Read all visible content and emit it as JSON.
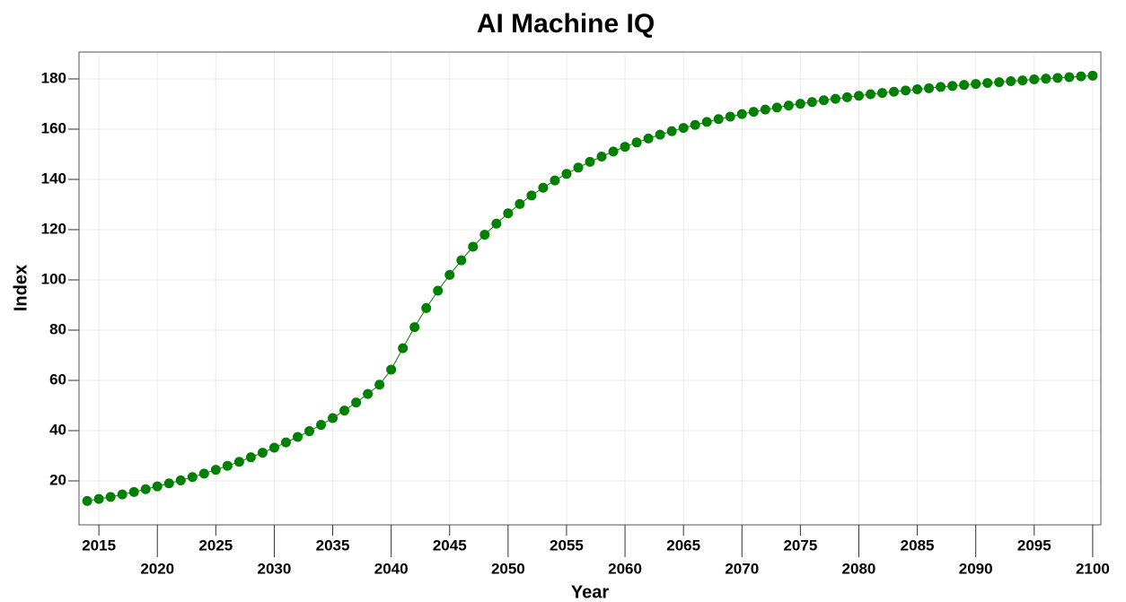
{
  "chart_data": {
    "type": "line",
    "title": "AI Machine IQ",
    "x_label": "Year",
    "y_label": "Index",
    "x": [
      2014,
      2015,
      2016,
      2017,
      2018,
      2019,
      2020,
      2021,
      2022,
      2023,
      2024,
      2025,
      2026,
      2027,
      2028,
      2029,
      2030,
      2031,
      2032,
      2033,
      2034,
      2035,
      2036,
      2037,
      2038,
      2039,
      2040,
      2041,
      2042,
      2043,
      2044,
      2045,
      2046,
      2047,
      2048,
      2049,
      2050,
      2051,
      2052,
      2053,
      2054,
      2055,
      2056,
      2057,
      2058,
      2059,
      2060,
      2061,
      2062,
      2063,
      2064,
      2065,
      2066,
      2067,
      2068,
      2069,
      2070,
      2071,
      2072,
      2073,
      2074,
      2075,
      2076,
      2077,
      2078,
      2079,
      2080,
      2081,
      2082,
      2083,
      2084,
      2085,
      2086,
      2087,
      2088,
      2089,
      2090,
      2091,
      2092,
      2093,
      2094,
      2095,
      2096,
      2097,
      2098,
      2099,
      2100
    ],
    "series": [
      {
        "name": "Index",
        "color": "#008000",
        "values": [
          12,
          12.8,
          13.6,
          14.6,
          15.6,
          16.7,
          17.8,
          19,
          20.2,
          21.5,
          22.9,
          24.4,
          26,
          27.6,
          29.4,
          31.2,
          33.2,
          35.3,
          37.5,
          39.8,
          42.3,
          45,
          48,
          51.2,
          54.6,
          58.3,
          64.3,
          72.8,
          81.2,
          88.8,
          95.7,
          102,
          107.8,
          113.2,
          118,
          122.4,
          126.5,
          130.2,
          133.6,
          136.7,
          139.6,
          142.2,
          144.7,
          147,
          149.1,
          151.1,
          153,
          154.7,
          156.3,
          157.8,
          159.2,
          160.5,
          161.7,
          162.9,
          164,
          165,
          166,
          166.9,
          167.8,
          168.6,
          169.4,
          170.1,
          170.8,
          171.5,
          172.1,
          172.7,
          173.3,
          173.9,
          174.4,
          174.9,
          175.4,
          175.9,
          176.3,
          176.8,
          177.2,
          177.6,
          178,
          178.4,
          178.7,
          179.1,
          179.4,
          179.8,
          180.1,
          180.4,
          180.7,
          181,
          181.3
        ]
      }
    ],
    "xlim": [
      2013.3,
      2100.7
    ],
    "xticks": [
      2015,
      2020,
      2025,
      2030,
      2035,
      2040,
      2045,
      2050,
      2055,
      2060,
      2065,
      2070,
      2075,
      2080,
      2085,
      2090,
      2095,
      2100
    ],
    "ylim": [
      2.5,
      190.7
    ],
    "yticks": [
      20,
      40,
      60,
      80,
      100,
      120,
      140,
      160,
      180
    ],
    "grid": true
  }
}
